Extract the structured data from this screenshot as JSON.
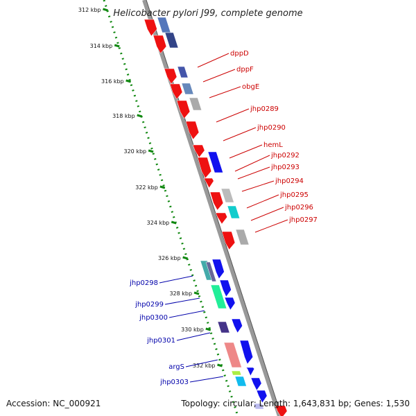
{
  "title": "Helicobacter pylori J99, complete genome",
  "footer": {
    "accession": "Accession: NC_000921",
    "topology": "Topology: circular; Length: 1,643,831 bp; Genes: 1,530"
  },
  "colors": {
    "forward_label": "#cc0000",
    "reverse_label": "#0000aa",
    "ruler": "#118811",
    "backbone": "#999999"
  },
  "ruler_ticks": [
    "312 kbp",
    "314 kbp",
    "316 kbp",
    "318 kbp",
    "320 kbp",
    "322 kbp",
    "324 kbp",
    "326 kbp",
    "328 kbp",
    "330 kbp",
    "332 kbp"
  ],
  "forward_labels": [
    "dppD",
    "dppF",
    "obgE",
    "jhp0289",
    "jhp0290",
    "hemL",
    "jhp0292",
    "jhp0293",
    "jhp0294",
    "jhp0295",
    "jhp0296",
    "jhp0297"
  ],
  "reverse_labels": [
    "jhp0298",
    "jhp0299",
    "jhp0300",
    "jhp0301",
    "argS",
    "jhp0303"
  ]
}
